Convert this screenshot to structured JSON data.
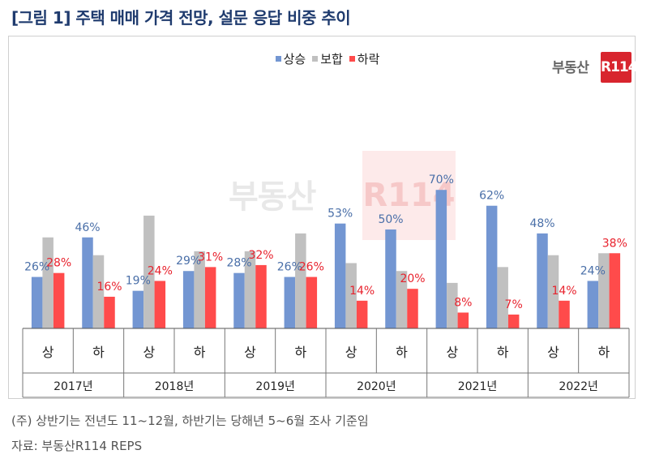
{
  "title": "[그림 1] 주택 매매 가격 전망, 설문 응답 비중 추이",
  "logo": {
    "text": "부동산",
    "box_text": "R114"
  },
  "watermark": {
    "text": "부동산",
    "box_text": "R114"
  },
  "notes": {
    "line1": "(주) 상반기는 전년도 11~12월, 하반기는 당해년 5~6월 조사 기준임",
    "line2": "자료: 부동산R114 REPS"
  },
  "chart_data": {
    "type": "bar",
    "title": "[그림 1] 주택 매매 가격 전망, 설문 응답 비중 추이",
    "xlabel": "",
    "ylabel": "",
    "ylim": [
      0,
      75
    ],
    "grid": false,
    "legend_position": "top",
    "categories": [
      "상",
      "하",
      "상",
      "하",
      "상",
      "하",
      "상",
      "하",
      "상",
      "하",
      "상",
      "하"
    ],
    "year_groups": [
      "2017년",
      "2018년",
      "2019년",
      "2020년",
      "2021년",
      "2022년"
    ],
    "series": [
      {
        "name": "상승",
        "color": "#7396d2",
        "values": [
          26,
          46,
          19,
          29,
          28,
          26,
          53,
          50,
          70,
          62,
          48,
          24
        ],
        "labels_shown": true,
        "label_color": "#4a6fa8"
      },
      {
        "name": "보합",
        "color": "#c0c0c0",
        "values": [
          46,
          37,
          57,
          39,
          39,
          48,
          33,
          29,
          23,
          31,
          37,
          38
        ],
        "labels_shown": false,
        "label_color": "#888888"
      },
      {
        "name": "하락",
        "color": "#ff4b4b",
        "values": [
          28,
          16,
          24,
          31,
          32,
          26,
          14,
          20,
          8,
          7,
          14,
          38
        ],
        "labels_shown": true,
        "label_color": "#e8222d"
      }
    ]
  }
}
